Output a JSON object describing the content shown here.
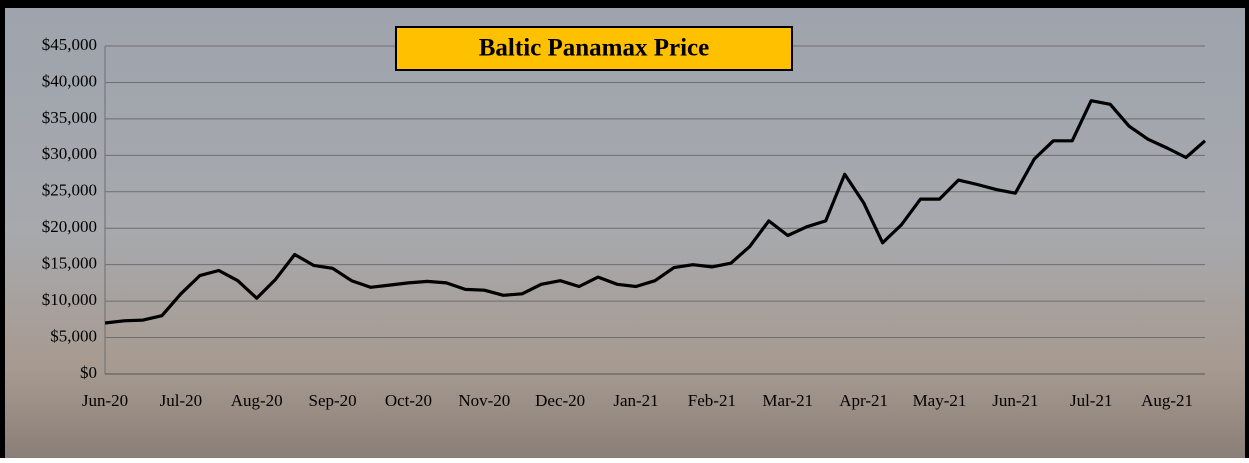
{
  "chart_data": {
    "type": "line",
    "title": "Baltic Panamax Price",
    "categories": [
      "Jun-20",
      null,
      null,
      null,
      "Jul-20",
      null,
      null,
      null,
      "Aug-20",
      null,
      null,
      null,
      "Sep-20",
      null,
      null,
      null,
      "Oct-20",
      null,
      null,
      null,
      "Nov-20",
      null,
      null,
      null,
      "Dec-20",
      null,
      null,
      null,
      "Jan-21",
      null,
      null,
      null,
      "Feb-21",
      null,
      null,
      null,
      "Mar-21",
      null,
      null,
      null,
      "Apr-21",
      null,
      null,
      null,
      "May-21",
      null,
      null,
      null,
      "Jun-21",
      null,
      null,
      null,
      "Jul-21",
      null,
      null,
      null,
      "Aug-21",
      null,
      null
    ],
    "values": [
      7000,
      7300,
      7400,
      8000,
      11000,
      13500,
      14200,
      12800,
      10400,
      13000,
      16400,
      14900,
      14500,
      12800,
      11900,
      12200,
      12500,
      12700,
      12500,
      11600,
      11500,
      10800,
      11000,
      12300,
      12800,
      12000,
      13300,
      12300,
      12000,
      12800,
      14600,
      15000,
      14700,
      15200,
      17500,
      21000,
      19000,
      20200,
      21000,
      27400,
      23500,
      18000,
      20500,
      24000,
      24000,
      26600,
      26000,
      25300,
      24800,
      29500,
      32000,
      32000,
      37500,
      37000,
      34000,
      32200,
      31000,
      29700,
      32000
    ],
    "color": "#000000",
    "ylim": [
      0,
      45000
    ],
    "yticks": [
      {
        "value": 0,
        "label": "$0"
      },
      {
        "value": 5000,
        "label": "$5,000"
      },
      {
        "value": 10000,
        "label": "$10,000"
      },
      {
        "value": 15000,
        "label": "$15,000"
      },
      {
        "value": 20000,
        "label": "$20,000"
      },
      {
        "value": 25000,
        "label": "$25,000"
      },
      {
        "value": 30000,
        "label": "$30,000"
      },
      {
        "value": 35000,
        "label": "$35,000"
      },
      {
        "value": 40000,
        "label": "$40,000"
      },
      {
        "value": 45000,
        "label": "$45,000"
      }
    ],
    "grid": true
  }
}
